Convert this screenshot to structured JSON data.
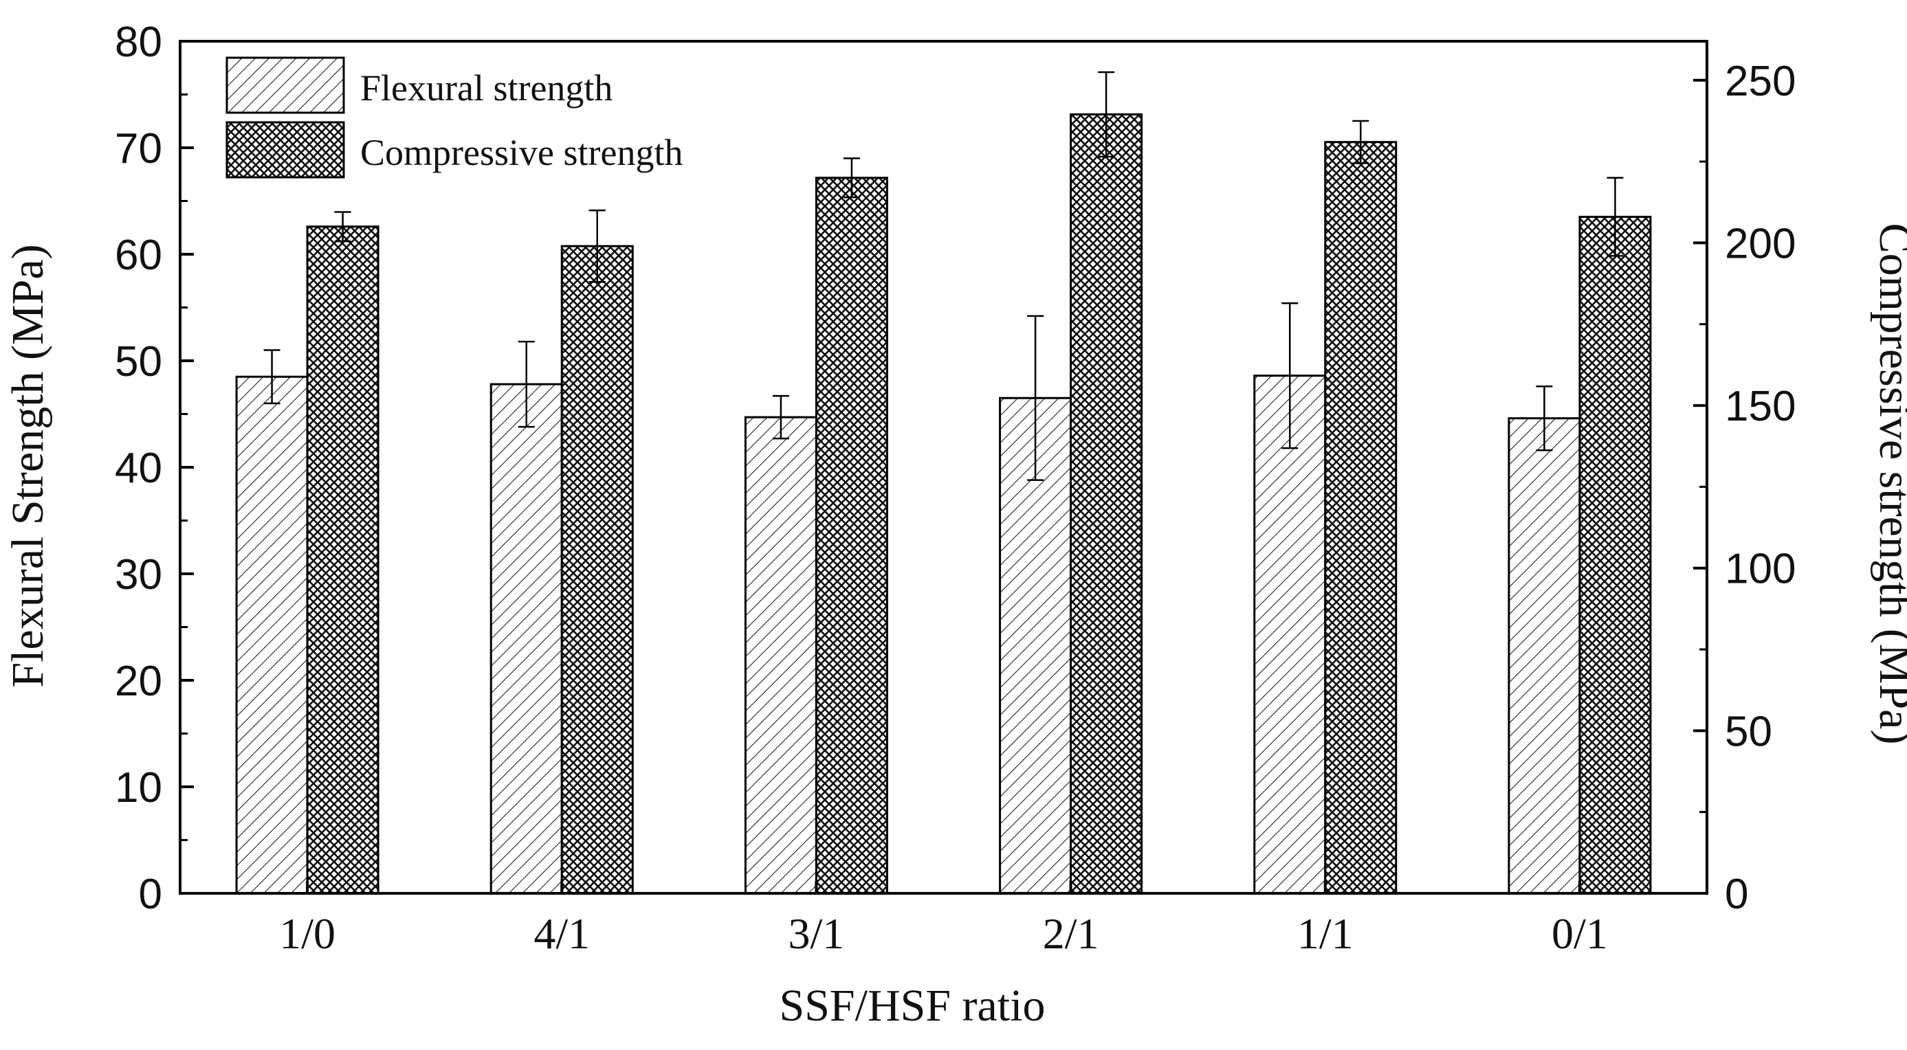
{
  "chart_data": {
    "type": "bar",
    "xlabel": "SSF/HSF ratio",
    "categories": [
      "1/0",
      "4/1",
      "3/1",
      "2/1",
      "1/1",
      "0/1"
    ],
    "y_left": {
      "label": "Flexural Strength (MPa)",
      "range": [
        0,
        80
      ],
      "ticks": [
        "0",
        "10",
        "20",
        "30",
        "40",
        "50",
        "60",
        "70",
        "80"
      ]
    },
    "y_right": {
      "label": "Compressive strength (MPa)",
      "range": [
        0,
        262
      ],
      "ticks": [
        "0",
        "50",
        "100",
        "150",
        "200",
        "250"
      ]
    },
    "series": [
      {
        "name": "Flexural strength",
        "axis": "left",
        "pattern": "diagonal-hatch",
        "values": [
          48.5,
          47.8,
          44.7,
          46.5,
          48.6,
          44.6
        ],
        "errors": [
          2.5,
          4.0,
          2.0,
          7.7,
          6.8,
          3.0
        ]
      },
      {
        "name": "Compressive strength",
        "axis": "right",
        "pattern": "cross-hatch",
        "values": [
          205.0,
          199.0,
          220.0,
          239.5,
          231.0,
          208.0
        ],
        "errors": [
          4.5,
          11.0,
          6.0,
          13.0,
          6.5,
          12.0
        ]
      }
    ],
    "legend_position": "top-left"
  }
}
